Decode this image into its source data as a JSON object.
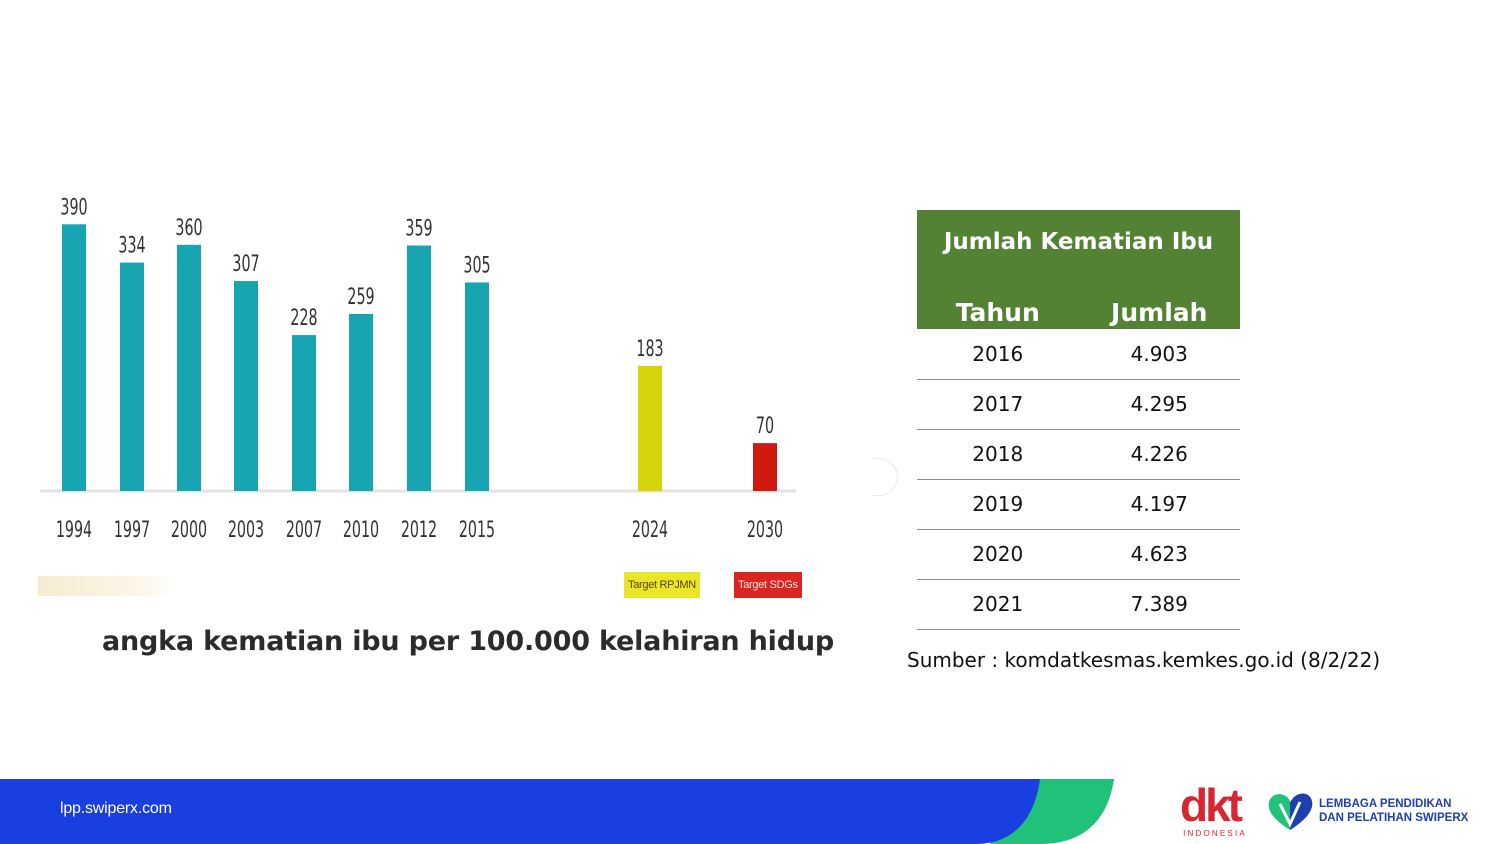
{
  "chart_data": {
    "type": "bar",
    "categories": [
      "1994",
      "1997",
      "2000",
      "2003",
      "2007",
      "2010",
      "2012",
      "2015",
      "2024",
      "2030"
    ],
    "values": [
      390,
      334,
      360,
      307,
      228,
      259,
      359,
      305,
      183,
      70
    ],
    "value_labels": [
      "390",
      "334",
      "360",
      "307",
      "228",
      "259",
      "359",
      "305",
      "183",
      "70"
    ],
    "colors": [
      "#17a5b1",
      "#17a5b1",
      "#17a5b1",
      "#17a5b1",
      "#17a5b1",
      "#17a5b1",
      "#17a5b1",
      "#17a5b1",
      "#d6d40a",
      "#d0190f"
    ],
    "ylim": [
      0,
      400
    ],
    "grid": false,
    "targets": [
      {
        "label": "Target RPJMN",
        "year": "2024",
        "color": "#e8e627"
      },
      {
        "label": "Target SDGs",
        "year": "2030",
        "color": "#d92621"
      }
    ],
    "caption": "angka kematian ibu per 100.000 kelahiran hidup"
  },
  "table": {
    "title": "Jumlah Kematian Ibu",
    "columns": [
      "Tahun",
      "Jumlah"
    ],
    "rows": [
      [
        "2016",
        "4.903"
      ],
      [
        "2017",
        "4.295"
      ],
      [
        "2018",
        "4.226"
      ],
      [
        "2019",
        "4.197"
      ],
      [
        "2020",
        "4.623"
      ],
      [
        "2021",
        "7.389"
      ]
    ],
    "header_color": "#548235"
  },
  "source": "Sumber : komdatkesmas.kemkes.go.id  (8/2/22)",
  "footer": {
    "url": "lpp.swiperx.com",
    "band_color": "#1a3fe0",
    "accent_color": "#20c27a",
    "dkt_logo": {
      "text": "dkt",
      "sub": "INDONESIA",
      "color": "#d9252f"
    },
    "lpp_logo": {
      "line1": "LEMBAGA PENDIDIKAN",
      "line2": "DAN PELATIHAN SWIPERX",
      "color": "#1f3fae"
    }
  }
}
